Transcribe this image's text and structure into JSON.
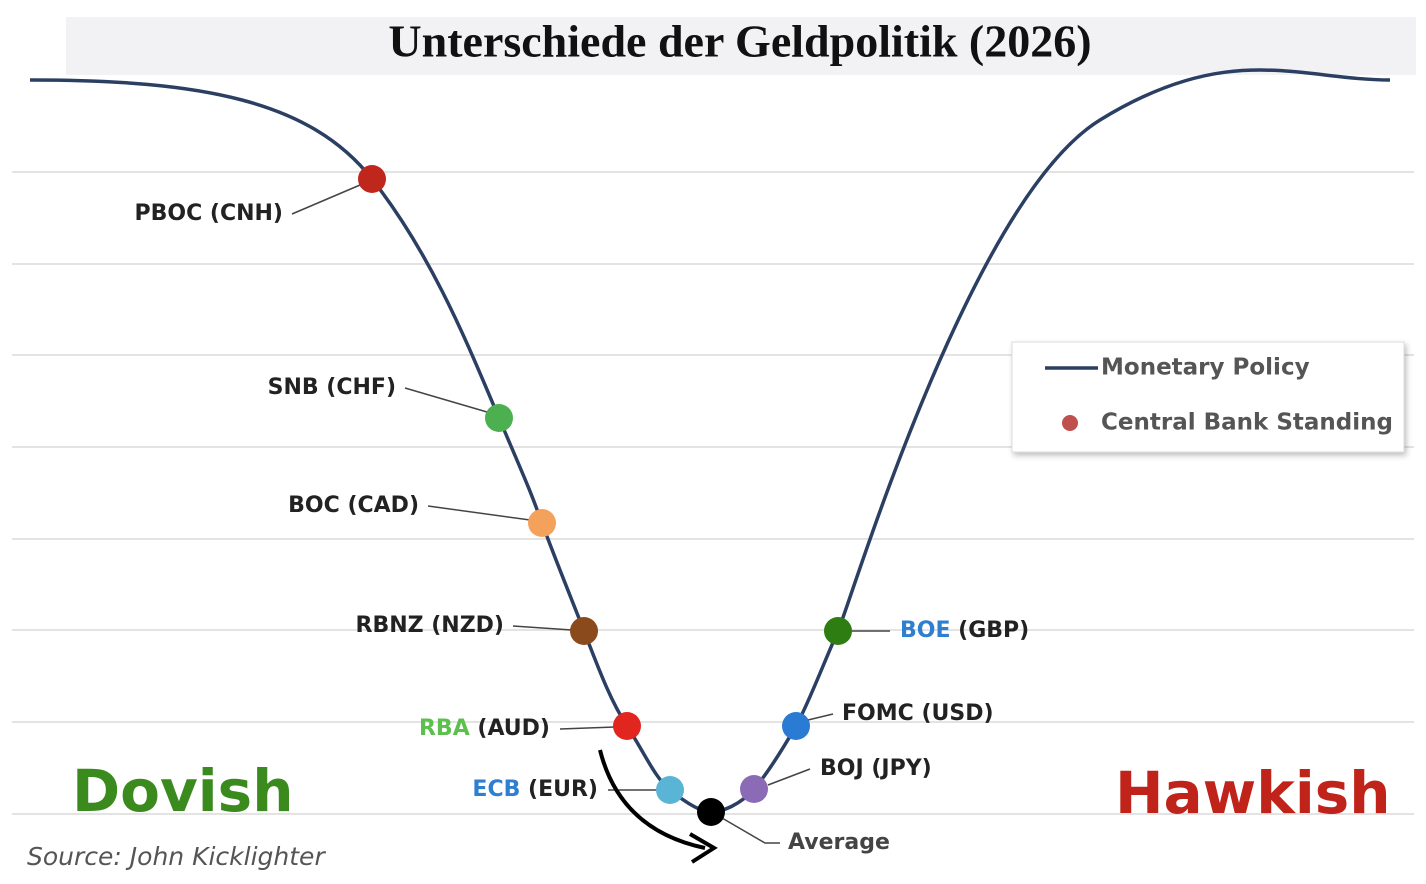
{
  "title": "Unterschiede der Geldpolitik (2026)",
  "curve": {
    "color": "#2b3f63"
  },
  "nodes": [
    {
      "name": "PBOC",
      "currency": "(CNH)",
      "color": "#c0271c",
      "label_color": "#222222"
    },
    {
      "name": "SNB",
      "currency": "(CHF)",
      "color": "#4caf50",
      "label_color": "#222222"
    },
    {
      "name": "BOC",
      "currency": "(CAD)",
      "color": "#f4a25b",
      "label_color": "#222222"
    },
    {
      "name": "RBNZ",
      "currency": "(NZD)",
      "color": "#8b4a1c",
      "label_color": "#222222"
    },
    {
      "name": "RBA",
      "currency": "(AUD)",
      "color": "#e0261f",
      "label_color": "#5cc04c"
    },
    {
      "name": "ECB",
      "currency": "(EUR)",
      "color": "#5ab4d6",
      "label_color": "#2f7fd0"
    },
    {
      "name": "BOJ",
      "currency": "(JPY)",
      "color": "#8b6bb5",
      "label_color": "#222222"
    },
    {
      "name": "FOMC",
      "currency": "(USD)",
      "color": "#2a7bd3",
      "label_color": "#222222"
    },
    {
      "name": "BOE",
      "currency": "(GBP)",
      "color": "#2e7d12",
      "label_color": "#2f7fd0"
    }
  ],
  "average": {
    "label": "Average",
    "color": "#000000"
  },
  "legend": {
    "line": "Monetary Policy",
    "dot": "Central Bank Standing",
    "dot_color": "#c0504d"
  },
  "dovish": {
    "text": "Dovish",
    "color": "#3a8a1e"
  },
  "hawkish": {
    "text": "Hawkish",
    "color": "#c0231a"
  },
  "source": "Source: John Kicklighter"
}
